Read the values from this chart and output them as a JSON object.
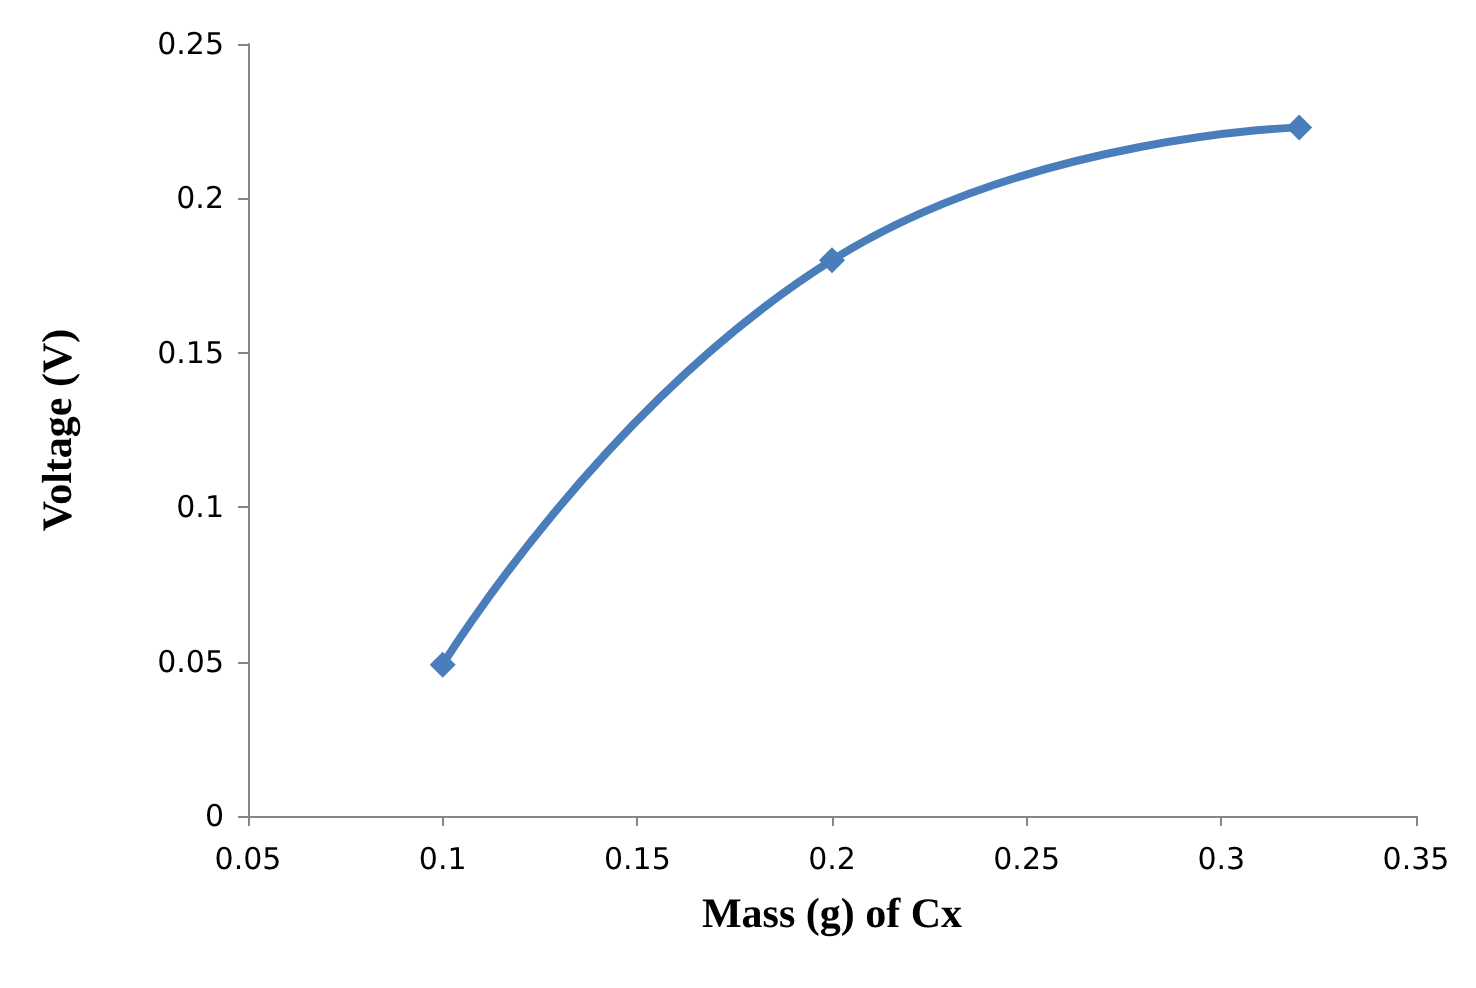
{
  "chart_data": {
    "type": "line",
    "xlabel": "Mass (g) of Cx",
    "ylabel": "Voltage (V)",
    "x": [
      0.1,
      0.2,
      0.32
    ],
    "series": [
      {
        "color": "#4a7ebb",
        "values": [
          0.049,
          0.18,
          0.223
        ]
      }
    ],
    "xlim": [
      0.05,
      0.35
    ],
    "xticks": [
      0.05,
      0.1,
      0.15,
      0.2,
      0.25,
      0.3,
      0.35
    ],
    "ylim": [
      0,
      0.25
    ],
    "yticks": [
      0,
      0.05,
      0.1,
      0.15,
      0.2,
      0.25
    ],
    "grid": false,
    "marker": "diamond",
    "line_style": "solid"
  }
}
